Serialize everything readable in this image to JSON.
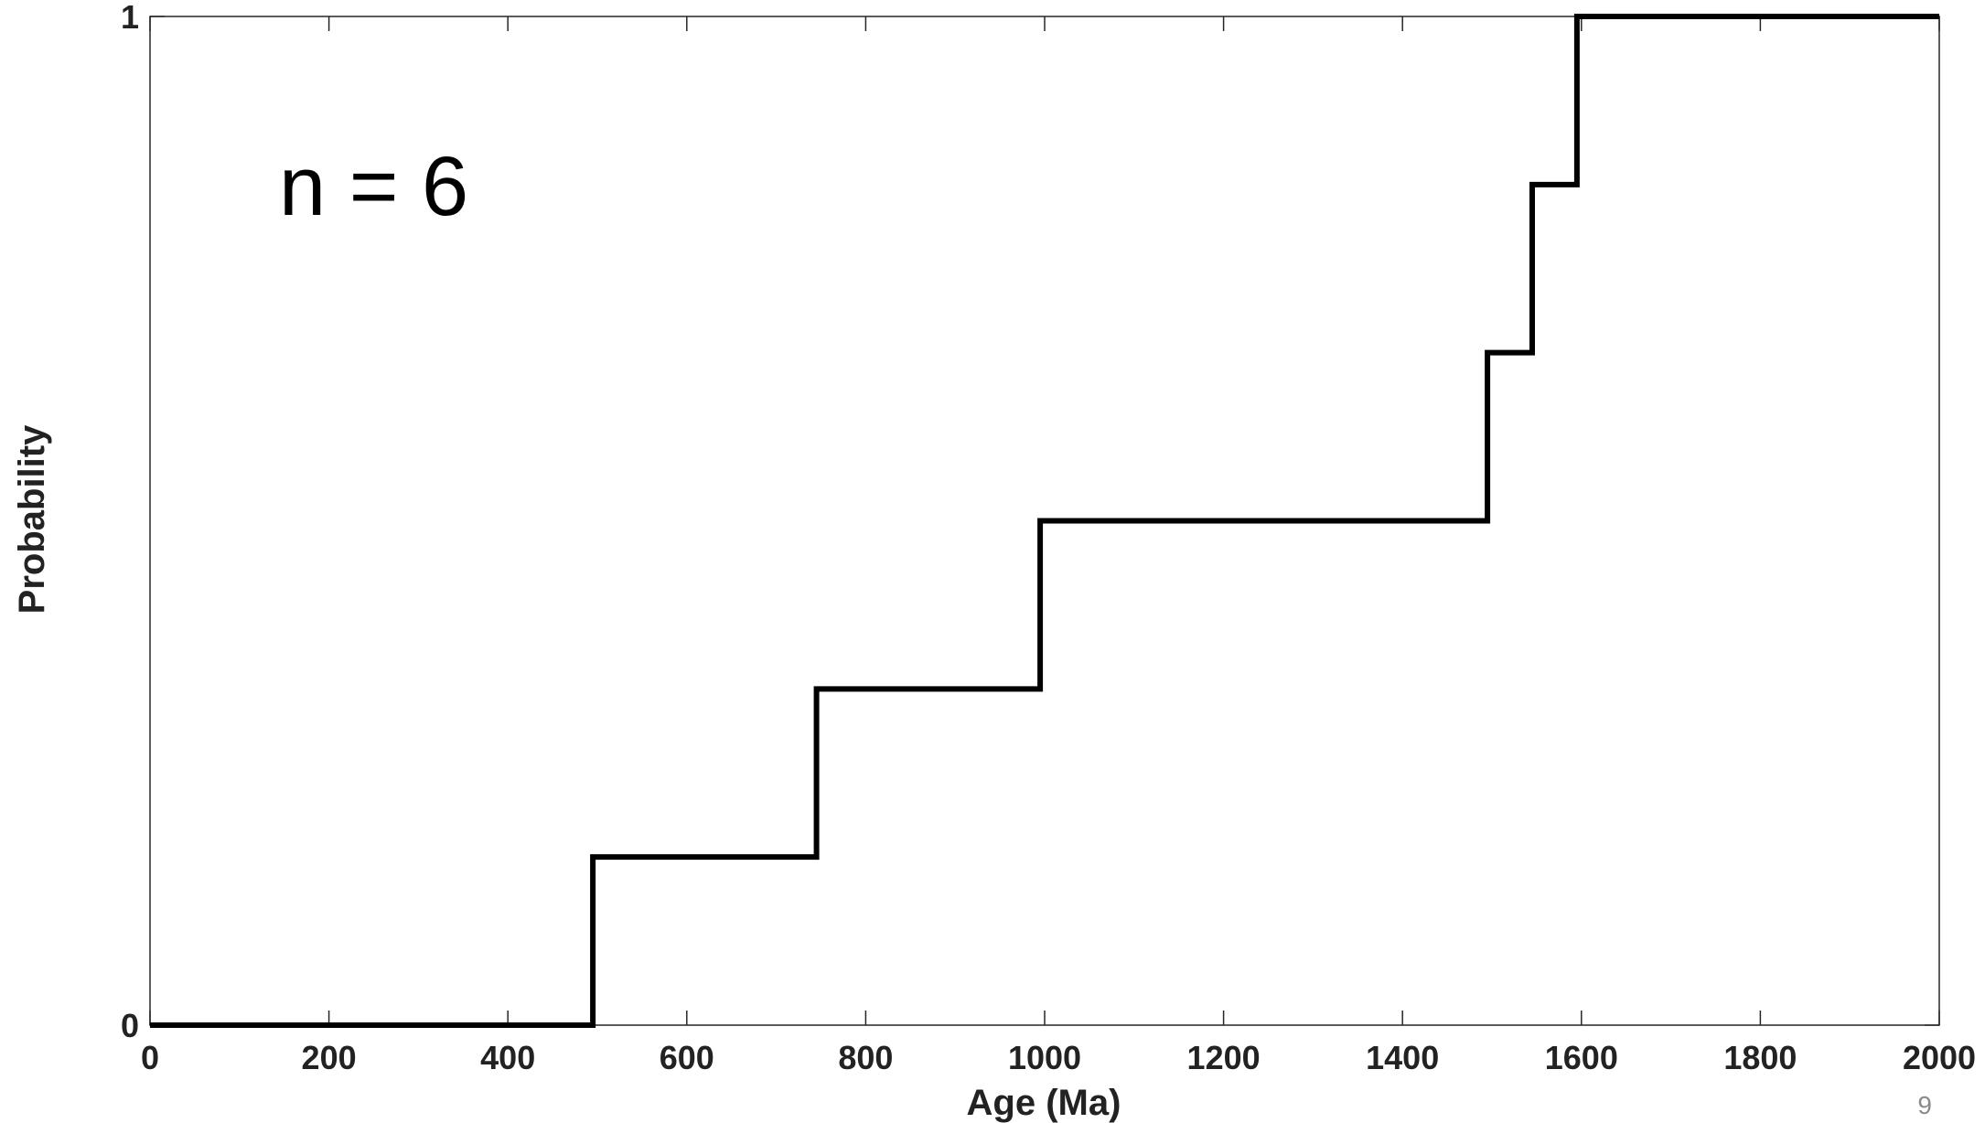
{
  "chart_data": {
    "type": "line",
    "step": true,
    "xlabel": "Age (Ma)",
    "ylabel": "Probability",
    "xlim": [
      0,
      2000
    ],
    "ylim": [
      0,
      1
    ],
    "x_ticks": [
      0,
      200,
      400,
      600,
      800,
      1000,
      1200,
      1400,
      1600,
      1800,
      2000
    ],
    "y_ticks": [
      0,
      1
    ],
    "grid": false,
    "annotation": "n = 6",
    "line_color": "#000000",
    "axis_color": "#262626",
    "series": [
      {
        "points": [
          {
            "x": 0,
            "y": 0
          },
          {
            "x": 495,
            "y": 0
          },
          {
            "x": 495,
            "y": 0.1667
          },
          {
            "x": 745,
            "y": 0.1667
          },
          {
            "x": 745,
            "y": 0.3333
          },
          {
            "x": 995,
            "y": 0.3333
          },
          {
            "x": 995,
            "y": 0.5
          },
          {
            "x": 1495,
            "y": 0.5
          },
          {
            "x": 1495,
            "y": 0.6667
          },
          {
            "x": 1545,
            "y": 0.6667
          },
          {
            "x": 1545,
            "y": 0.8333
          },
          {
            "x": 1595,
            "y": 0.8333
          },
          {
            "x": 1595,
            "y": 1
          },
          {
            "x": 2000,
            "y": 1
          }
        ]
      }
    ]
  },
  "page_number": "9"
}
